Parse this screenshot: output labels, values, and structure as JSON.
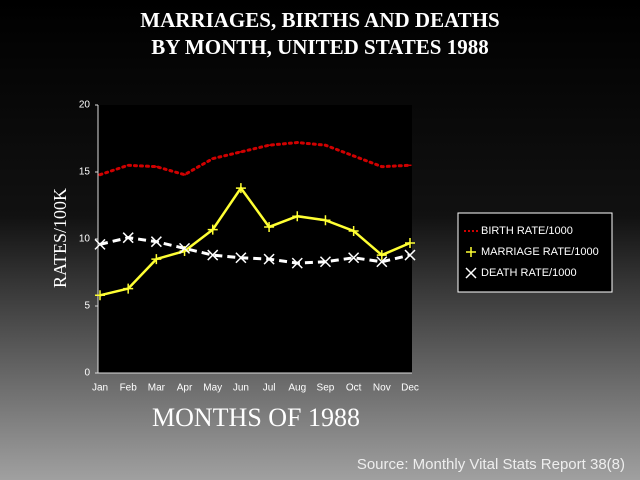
{
  "chart_data": {
    "type": "line",
    "title": "MARRIAGES, BIRTHS AND DEATHS",
    "subtitle": "BY MONTH, UNITED STATES 1988",
    "x_label": "MONTHS OF 1988",
    "y_label": "RATES/100K",
    "source": "Source: Monthly Vital Stats Report 38(8)",
    "categories": [
      "Jan",
      "Feb",
      "Mar",
      "Apr",
      "May",
      "Jun",
      "Jul",
      "Aug",
      "Sep",
      "Oct",
      "Nov",
      "Dec"
    ],
    "series": [
      {
        "name": "BIRTH RATE/1000",
        "color": "#d00000",
        "values": [
          14.8,
          15.5,
          15.4,
          14.8,
          16.0,
          16.5,
          17.0,
          17.2,
          17.0,
          16.2,
          15.4,
          15.5
        ]
      },
      {
        "name": "MARRIAGE RATE/1000",
        "color": "#ffff33",
        "values": [
          5.8,
          6.3,
          8.5,
          9.1,
          10.7,
          13.8,
          10.9,
          11.7,
          11.4,
          10.6,
          8.8,
          9.7
        ]
      },
      {
        "name": "DEATH RATE/1000",
        "color": "#ffffff",
        "values": [
          9.6,
          10.1,
          9.8,
          9.3,
          8.8,
          8.6,
          8.5,
          8.2,
          8.3,
          8.6,
          8.3,
          8.8
        ]
      }
    ],
    "ylim": [
      0,
      20
    ],
    "yticks": [
      0,
      5,
      10,
      15,
      20
    ]
  }
}
